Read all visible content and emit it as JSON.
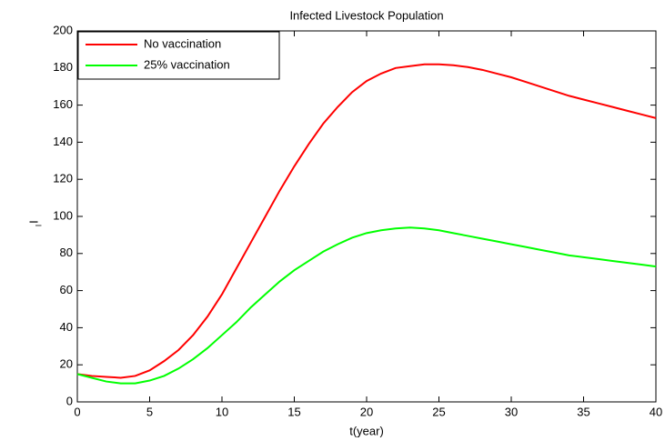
{
  "chart_data": {
    "type": "line",
    "title": "Infected Livestock Population",
    "xlabel": "t(year)",
    "ylabel": "I",
    "ylabel_subscript": "l",
    "x": [
      0,
      1,
      2,
      3,
      4,
      5,
      6,
      7,
      8,
      9,
      10,
      11,
      12,
      13,
      14,
      15,
      16,
      17,
      18,
      19,
      20,
      21,
      22,
      23,
      24,
      25,
      26,
      27,
      28,
      29,
      30,
      31,
      32,
      33,
      34,
      35,
      36,
      37,
      38,
      39,
      40
    ],
    "series": [
      {
        "name": "No vaccination",
        "color": "#ff0000",
        "values": [
          15,
          14,
          13.5,
          13,
          14,
          17,
          22,
          28,
          36,
          46,
          58,
          72,
          86,
          100,
          114,
          127,
          139,
          150,
          159,
          167,
          173,
          177,
          180,
          181,
          182,
          182,
          181.5,
          180.5,
          179,
          177,
          175,
          172.5,
          170,
          167.5,
          165,
          163,
          161,
          159,
          157,
          155,
          153
        ]
      },
      {
        "name": "25% vaccination",
        "color": "#00ff00",
        "values": [
          15,
          13,
          11,
          10,
          10,
          11.5,
          14,
          18,
          23,
          29,
          36,
          43,
          51,
          58,
          65,
          71,
          76,
          81,
          85,
          88.5,
          91,
          92.5,
          93.5,
          94,
          93.5,
          92.5,
          91,
          89.5,
          88,
          86.5,
          85,
          83.5,
          82,
          80.5,
          79,
          78,
          77,
          76,
          75,
          74,
          73
        ]
      }
    ],
    "xlim": [
      0,
      40
    ],
    "xticks": [
      0,
      5,
      10,
      15,
      20,
      25,
      30,
      35,
      40
    ],
    "ylim": [
      0,
      200
    ],
    "yticks": [
      0,
      20,
      40,
      60,
      80,
      100,
      120,
      140,
      160,
      180,
      200
    ],
    "legend": "upper-left",
    "grid": false
  }
}
